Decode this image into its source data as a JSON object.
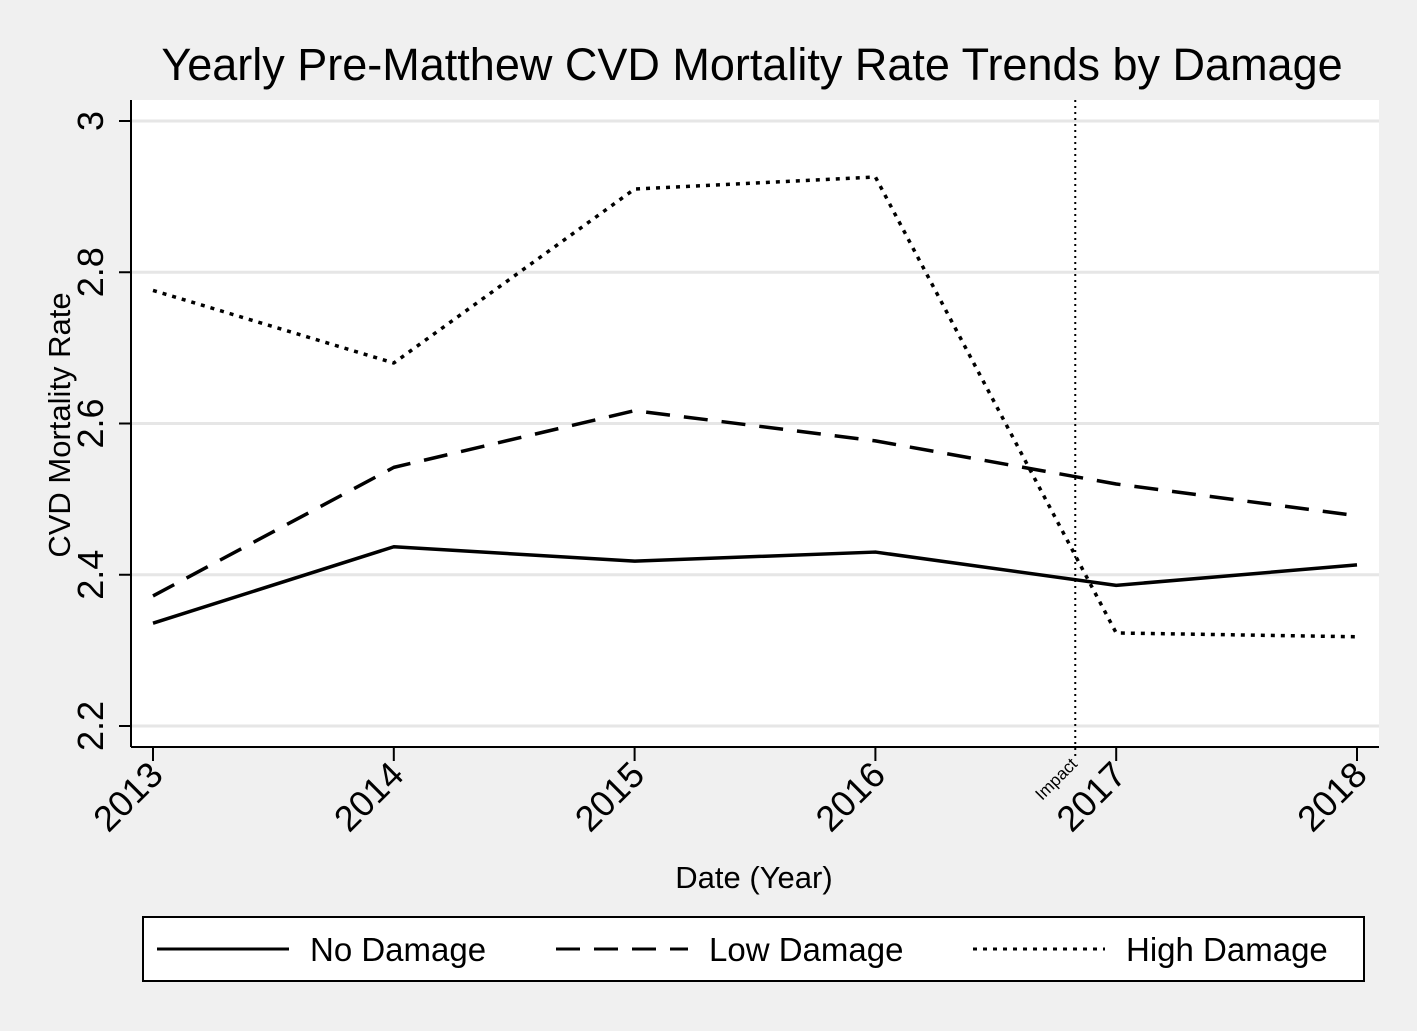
{
  "chart_data": {
    "type": "line",
    "title": "Yearly Pre-Matthew CVD Mortality Rate Trends by Damage",
    "xlabel": "Date (Year)",
    "ylabel": "CVD Mortality Rate",
    "categories": [
      "2013",
      "2014",
      "2015",
      "2016",
      "2017",
      "2018"
    ],
    "x": [
      2013,
      2014,
      2015,
      2016,
      2017,
      2018
    ],
    "xlim": [
      2013,
      2018
    ],
    "ylim": [
      2.2,
      3.0
    ],
    "yticks": [
      2.2,
      2.4,
      2.6,
      2.8,
      3.0
    ],
    "ytick_labels": [
      "2.2",
      "2.4",
      "2.6",
      "2.8",
      "3"
    ],
    "grid": true,
    "legend_position": "bottom",
    "series": [
      {
        "name": "No Damage",
        "style": "solid",
        "values": [
          2.336,
          2.437,
          2.418,
          2.43,
          2.386,
          2.413
        ]
      },
      {
        "name": "Low Damage",
        "style": "dashed",
        "values": [
          2.372,
          2.542,
          2.617,
          2.577,
          2.52,
          2.478
        ]
      },
      {
        "name": "High Damage",
        "style": "dotted",
        "values": [
          2.776,
          2.68,
          2.91,
          2.926,
          2.323,
          2.318
        ]
      }
    ],
    "annotations": [
      {
        "type": "vline",
        "x": 2016.83,
        "label": "Impact",
        "style": "dotted"
      }
    ]
  },
  "colors": {
    "page_background": "#f0f0f0",
    "plot_background": "#ffffff",
    "grid": "#e6e6e6",
    "ink": "#000000"
  }
}
